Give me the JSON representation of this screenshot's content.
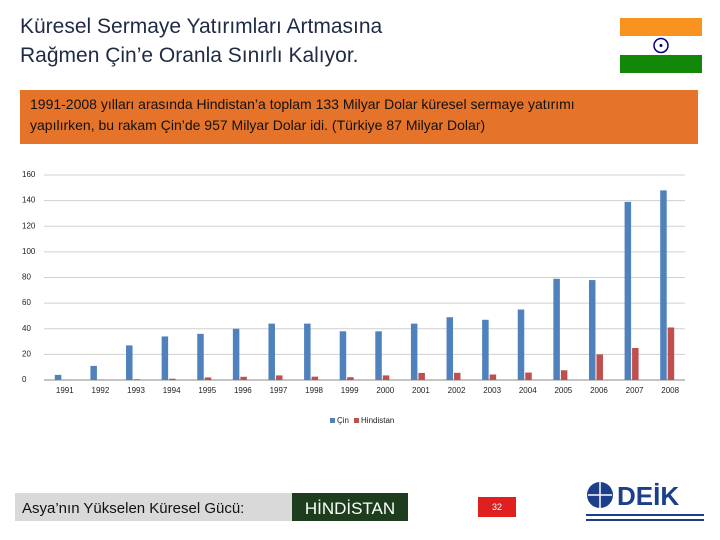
{
  "slide": {
    "title": [
      "Küresel Sermaye Yatırımları Artmasına",
      "Rağmen Çin’e Oranla Sınırlı Kalıyor."
    ],
    "note": [
      "1991-2008 yılları arasında Hindistan’a toplam 133 Milyar Dolar küresel sermaye yatırımı",
      "yapılırken, bu rakam Çin’de 957 Milyar Dolar idi. (Türkiye 87 Milyar Dolar)"
    ],
    "footer_text": "Asya’nın Yükselen Küresel Gücü:",
    "footer_highlight": "HİNDİSTAN",
    "page_number": "32",
    "logo": "DEİK"
  },
  "chart_data": {
    "type": "bar",
    "categories": [
      "1991",
      "1992",
      "1993",
      "1994",
      "1995",
      "1996",
      "1997",
      "1998",
      "1999",
      "2000",
      "2001",
      "2002",
      "2003",
      "2004",
      "2005",
      "2006",
      "2007",
      "2008"
    ],
    "series": [
      {
        "name": "Çin",
        "color": "#4f81bd",
        "values": [
          4,
          11,
          27,
          34,
          36,
          40,
          44,
          44,
          38,
          38,
          44,
          49,
          47,
          55,
          79,
          78,
          139,
          148
        ]
      },
      {
        "name": "Hindistan",
        "color": "#c0504d",
        "values": [
          0.1,
          0.3,
          0.6,
          1,
          2,
          2.5,
          3.6,
          2.6,
          2.2,
          3.6,
          5.5,
          5.6,
          4.3,
          5.8,
          7.6,
          20,
          25,
          41
        ]
      }
    ],
    "ylim": [
      0,
      160
    ],
    "yticks": [
      0,
      20,
      40,
      60,
      80,
      100,
      120,
      140,
      160
    ],
    "grid": true,
    "legend": "bottom"
  }
}
